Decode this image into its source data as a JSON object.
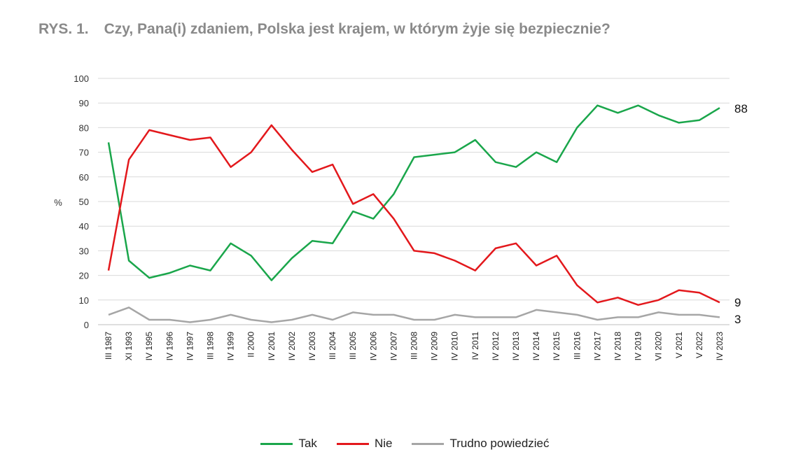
{
  "title": {
    "prefix": "RYS. 1.",
    "text": "Czy, Pana(i) zdaniem, Polska jest krajem, w którym żyje się bezpiecznie?"
  },
  "chart_data": {
    "type": "line",
    "title": "Czy, Pana(i) zdaniem, Polska jest krajem, w którym żyje się bezpiecznie?",
    "ylabel": "%",
    "ylim": [
      0,
      100
    ],
    "yticks": [
      0,
      10,
      20,
      30,
      40,
      50,
      60,
      70,
      80,
      90,
      100
    ],
    "grid": true,
    "legend": "bottom",
    "categories": [
      "III 1987",
      "XI 1993",
      "IV 1995",
      "IV 1996",
      "IV 1997",
      "III 1998",
      "IV 1999",
      "II 2000",
      "IV 2001",
      "IV 2002",
      "IV 2003",
      "III 2004",
      "III 2005",
      "IV 2006",
      "IV 2007",
      "III 2008",
      "IV 2009",
      "IV 2010",
      "IV 2011",
      "IV 2012",
      "IV 2013",
      "IV 2014",
      "IV 2015",
      "III 2016",
      "IV 2017",
      "IV 2018",
      "IV 2019",
      "VI 2020",
      "V 2021",
      "V 2022",
      "IV 2023"
    ],
    "series": [
      {
        "name": "Tak",
        "color": "#1aa64b",
        "values": [
          74,
          26,
          19,
          21,
          24,
          22,
          33,
          28,
          18,
          27,
          34,
          33,
          46,
          43,
          53,
          68,
          69,
          70,
          75,
          66,
          64,
          70,
          66,
          80,
          89,
          86,
          89,
          85,
          82,
          83,
          88
        ],
        "end_label": "88"
      },
      {
        "name": "Nie",
        "color": "#e3181c",
        "values": [
          22,
          67,
          79,
          77,
          75,
          76,
          64,
          70,
          81,
          71,
          62,
          65,
          49,
          53,
          43,
          30,
          29,
          26,
          22,
          31,
          33,
          24,
          28,
          16,
          9,
          11,
          8,
          10,
          14,
          13,
          9
        ],
        "end_label": "9"
      },
      {
        "name": "Trudno powiedzieć",
        "color": "#a6a6a6",
        "values": [
          4,
          7,
          2,
          2,
          1,
          2,
          4,
          2,
          1,
          2,
          4,
          2,
          5,
          4,
          4,
          2,
          2,
          4,
          3,
          3,
          3,
          6,
          5,
          4,
          2,
          3,
          3,
          5,
          4,
          4,
          3
        ],
        "end_label": "3"
      }
    ]
  }
}
